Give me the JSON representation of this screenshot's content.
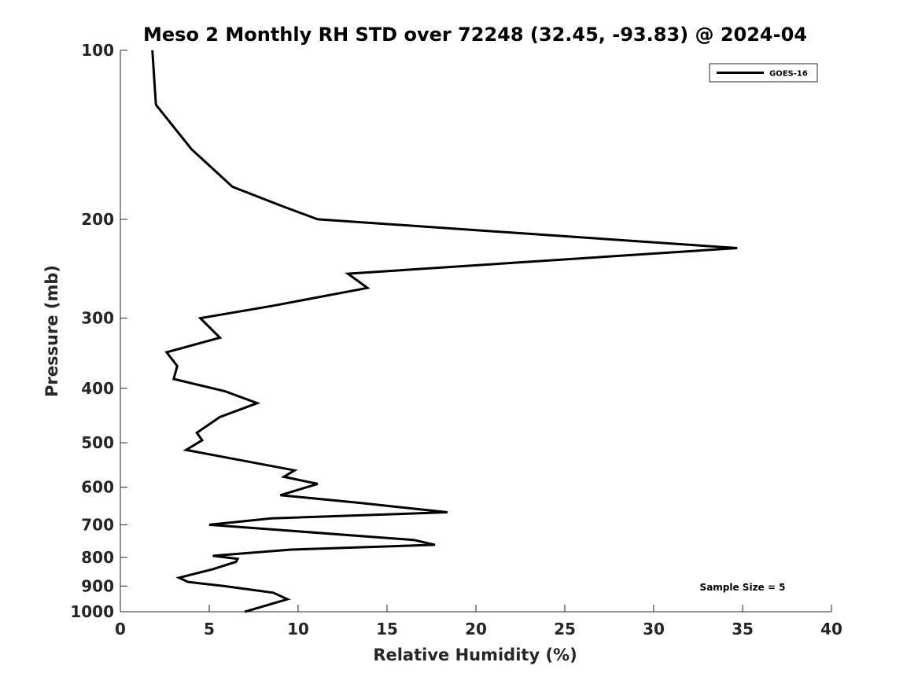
{
  "chart_data": {
    "type": "line",
    "title": "Meso 2 Monthly RH STD over 72248 (32.45, -93.83) @ 2024-04",
    "xlabel": "Relative Humidity (%)",
    "ylabel": "Pressure (mb)",
    "xlim": [
      0,
      40
    ],
    "ylim": [
      100,
      1000
    ],
    "y_scale": "log",
    "y_direction": "reversed",
    "x_ticks": [
      0,
      5,
      10,
      15,
      20,
      25,
      30,
      35,
      40
    ],
    "y_ticks": [
      100,
      200,
      300,
      400,
      500,
      600,
      700,
      800,
      900,
      1000
    ],
    "grid": false,
    "legend_position": "top-right",
    "annotation": "Sample Size = 5",
    "series": [
      {
        "name": "GOES-16",
        "color": "#000000",
        "x": [
          1.8,
          2.0,
          4.0,
          6.3,
          9.2,
          11.1,
          34.7,
          12.8,
          13.9,
          8.6,
          4.5,
          5.6,
          2.6,
          3.2,
          3.0,
          5.9,
          7.7,
          5.6,
          4.3,
          4.6,
          3.7,
          9.8,
          9.2,
          11.1,
          9.0,
          13.5,
          18.4,
          8.5,
          5.0,
          16.5,
          17.7,
          9.6,
          5.2,
          6.6,
          6.5,
          5.2,
          3.3,
          3.8,
          5.8,
          8.6,
          9.4,
          8.2,
          7.0
        ],
        "y": [
          100,
          125,
          150,
          175,
          190,
          200,
          225,
          250,
          265,
          285,
          300,
          325,
          345,
          365,
          385,
          405,
          425,
          450,
          480,
          495,
          515,
          560,
          575,
          592,
          620,
          640,
          665,
          682,
          700,
          745,
          760,
          775,
          795,
          805,
          815,
          840,
          870,
          885,
          900,
          925,
          950,
          975,
          1000
        ]
      }
    ]
  }
}
